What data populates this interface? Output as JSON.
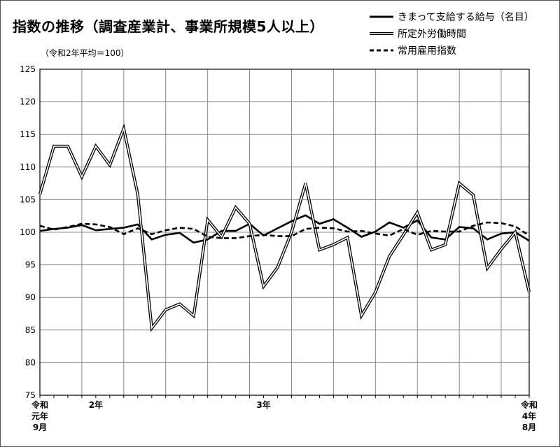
{
  "title": "指数の推移（調査産業計、事業所規模5人以上）",
  "subtitle": "（令和2年平均＝100）",
  "chart_data": {
    "type": "line",
    "title": "指数の推移（調査産業計、事業所規模5人以上）",
    "subtitle": "（令和2年平均＝100）",
    "xlabel": "",
    "ylabel": "",
    "ylim": [
      75,
      125
    ],
    "yticks": [
      75,
      80,
      85,
      90,
      95,
      100,
      105,
      110,
      115,
      120,
      125
    ],
    "grid": true,
    "legend_position": "top-right",
    "x": [
      "令和元年9月",
      "令和元年10月",
      "令和元年11月",
      "令和元年12月",
      "令和2年1月",
      "令和2年2月",
      "令和2年3月",
      "令和2年4月",
      "令和2年5月",
      "令和2年6月",
      "令和2年7月",
      "令和2年8月",
      "令和2年9月",
      "令和2年10月",
      "令和2年11月",
      "令和2年12月",
      "令和3年1月",
      "令和3年2月",
      "令和3年3月",
      "令和3年4月",
      "令和3年5月",
      "令和3年6月",
      "令和3年7月",
      "令和3年8月",
      "令和3年9月",
      "令和3年10月",
      "令和3年11月",
      "令和3年12月",
      "令和4年1月",
      "令和4年2月",
      "令和4年3月",
      "令和4年4月",
      "令和4年5月",
      "令和4年6月",
      "令和4年7月",
      "令和4年8月"
    ],
    "x_tick_labels": [
      {
        "index": 0,
        "lines": [
          "令和",
          "元年",
          "9月"
        ]
      },
      {
        "index": 4,
        "lines": [
          "2年"
        ]
      },
      {
        "index": 16,
        "lines": [
          "3年"
        ]
      },
      {
        "index": 35,
        "lines": [
          "令和",
          "4年",
          "8月"
        ]
      }
    ],
    "series": [
      {
        "name": "きまって支給する給与（名目）",
        "style": "solid",
        "color": "#000000",
        "values": [
          100.2,
          100.5,
          100.7,
          101.1,
          100.3,
          100.5,
          100.7,
          101.2,
          98.9,
          99.6,
          99.9,
          98.4,
          98.9,
          100.2,
          100.2,
          101.3,
          99.5,
          100.6,
          101.7,
          102.6,
          101.3,
          102.0,
          100.7,
          99.3,
          100.1,
          101.5,
          100.7,
          101.8,
          99.2,
          98.9,
          100.8,
          100.6,
          98.9,
          99.8,
          100.0,
          98.7
        ]
      },
      {
        "name": "所定外労働時間",
        "style": "double",
        "color": "#000000",
        "values": [
          105.8,
          113.2,
          113.2,
          108.5,
          113.2,
          110.3,
          115.9,
          105.8,
          85.3,
          88.1,
          89.0,
          87.2,
          101.9,
          99.3,
          103.8,
          101.3,
          91.7,
          94.6,
          100.0,
          107.5,
          97.3,
          98.1,
          99.2,
          87.2,
          90.8,
          96.3,
          99.6,
          103.0,
          97.3,
          98.1,
          107.5,
          105.7,
          94.5,
          97.4,
          100.0,
          90.8
        ]
      },
      {
        "name": "常用雇用指数",
        "style": "dashed",
        "color": "#000000",
        "values": [
          101.0,
          100.4,
          100.8,
          101.3,
          101.2,
          100.8,
          99.7,
          100.6,
          99.7,
          100.3,
          100.7,
          100.5,
          99.3,
          99.1,
          99.1,
          99.4,
          99.6,
          99.4,
          99.4,
          100.5,
          100.7,
          100.6,
          100.1,
          100.2,
          99.8,
          99.5,
          100.5,
          99.6,
          100.2,
          100.1,
          100.1,
          101.0,
          101.5,
          101.4,
          100.9,
          99.5
        ]
      }
    ]
  }
}
